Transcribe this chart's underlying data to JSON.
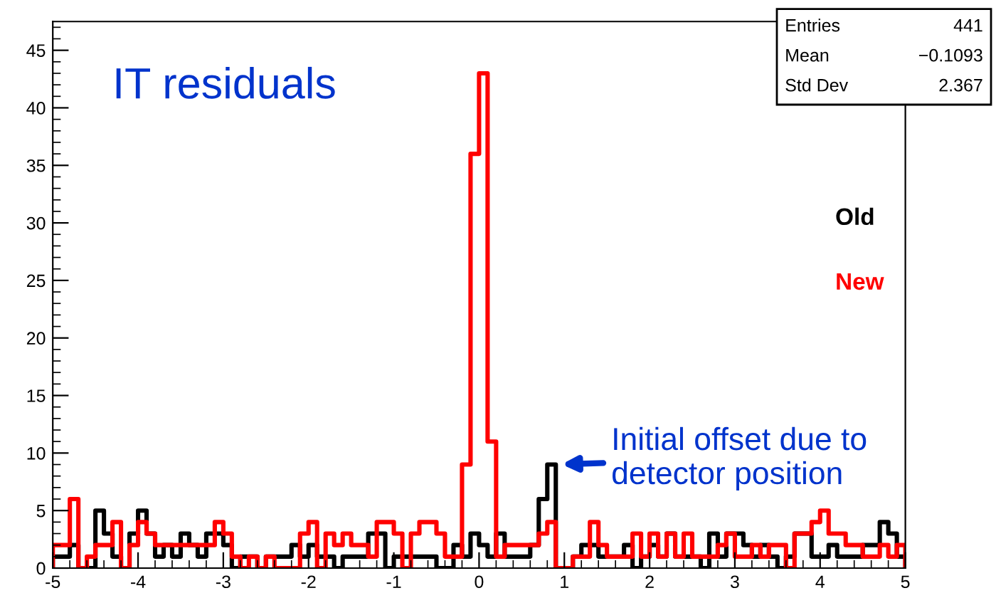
{
  "chart_data": {
    "type": "histogram",
    "title": "IT residuals",
    "bins": [
      -5.0,
      -4.9,
      -4.8,
      -4.7,
      -4.6,
      -4.5,
      -4.4,
      -4.3,
      -4.2,
      -4.1,
      -4.0,
      -3.9,
      -3.8,
      -3.7,
      -3.6,
      -3.5,
      -3.4,
      -3.3,
      -3.2,
      -3.1,
      -3.0,
      -2.9,
      -2.8,
      -2.7,
      -2.6,
      -2.5,
      -2.4,
      -2.3,
      -2.2,
      -2.1,
      -2.0,
      -1.9,
      -1.8,
      -1.7,
      -1.6,
      -1.5,
      -1.4,
      -1.3,
      -1.2,
      -1.1,
      -1.0,
      -0.9,
      -0.8,
      -0.7,
      -0.6,
      -0.5,
      -0.4,
      -0.3,
      -0.2,
      -0.1,
      0.0,
      0.1,
      0.2,
      0.3,
      0.4,
      0.5,
      0.6,
      0.7,
      0.8,
      0.9,
      1.0,
      1.1,
      1.2,
      1.3,
      1.4,
      1.5,
      1.6,
      1.7,
      1.8,
      1.9,
      2.0,
      2.1,
      2.2,
      2.3,
      2.4,
      2.5,
      2.6,
      2.7,
      2.8,
      2.9,
      3.0,
      3.1,
      3.2,
      3.3,
      3.4,
      3.5,
      3.6,
      3.7,
      3.8,
      3.9,
      4.0,
      4.1,
      4.2,
      4.3,
      4.4,
      4.5,
      4.6,
      4.7,
      4.8,
      4.9,
      5.0
    ],
    "series": [
      {
        "name": "Old",
        "color": "#000000",
        "values": [
          1,
          1,
          2,
          0,
          0,
          5,
          3,
          1,
          0,
          3,
          5,
          3,
          1,
          2,
          1,
          3,
          2,
          1,
          3,
          3,
          2,
          0,
          1,
          1,
          0,
          1,
          1,
          1,
          2,
          1,
          2,
          1,
          1,
          0,
          1,
          1,
          1,
          3,
          3,
          0,
          1,
          1,
          1,
          1,
          1,
          0,
          0,
          2,
          1,
          3,
          2,
          1,
          3,
          1,
          1,
          1,
          2,
          6,
          9,
          0,
          0,
          1,
          2,
          2,
          1,
          1,
          1,
          2,
          0,
          1,
          2,
          1,
          3,
          1,
          1,
          1,
          0,
          3,
          1,
          3,
          3,
          2,
          1,
          2,
          1,
          0,
          1,
          3,
          3,
          1,
          1,
          2,
          1,
          1,
          1,
          2,
          2,
          4,
          3,
          1
        ]
      },
      {
        "name": "New",
        "color": "#ff0000",
        "values": [
          2,
          2,
          6,
          0,
          1,
          2,
          2,
          4,
          0,
          2,
          4,
          3,
          2,
          2,
          2,
          2,
          2,
          2,
          2,
          4,
          3,
          1,
          0,
          1,
          0,
          1,
          0,
          0,
          0,
          3,
          4,
          0,
          3,
          2,
          3,
          2,
          2,
          1,
          4,
          4,
          3,
          0,
          3,
          4,
          4,
          3,
          1,
          1,
          9,
          36,
          43,
          11,
          1,
          2,
          2,
          2,
          2,
          3,
          4,
          0,
          0,
          1,
          1,
          4,
          2,
          1,
          1,
          1,
          3,
          1,
          3,
          1,
          3,
          1,
          3,
          1,
          1,
          1,
          2,
          3,
          1,
          1,
          2,
          1,
          2,
          2,
          0,
          3,
          3,
          4,
          5,
          3,
          3,
          2,
          2,
          1,
          1,
          2,
          1,
          2
        ]
      }
    ],
    "xlim": [
      -5,
      5
    ],
    "xticks": [
      -5,
      -4,
      -3,
      -2,
      -1,
      0,
      1,
      2,
      3,
      4,
      5
    ],
    "ylim": [
      0,
      47.5
    ],
    "yticks": [
      0,
      5,
      10,
      15,
      20,
      25,
      30,
      35,
      40,
      45
    ],
    "grid": false,
    "legend": "right",
    "annotations": [
      "Entries 441",
      "Mean −0.1093",
      "Std Dev 2.367",
      {
        "text": "Initial offset due to\ndetector position",
        "x": 0.9,
        "y": 9
      }
    ]
  }
}
